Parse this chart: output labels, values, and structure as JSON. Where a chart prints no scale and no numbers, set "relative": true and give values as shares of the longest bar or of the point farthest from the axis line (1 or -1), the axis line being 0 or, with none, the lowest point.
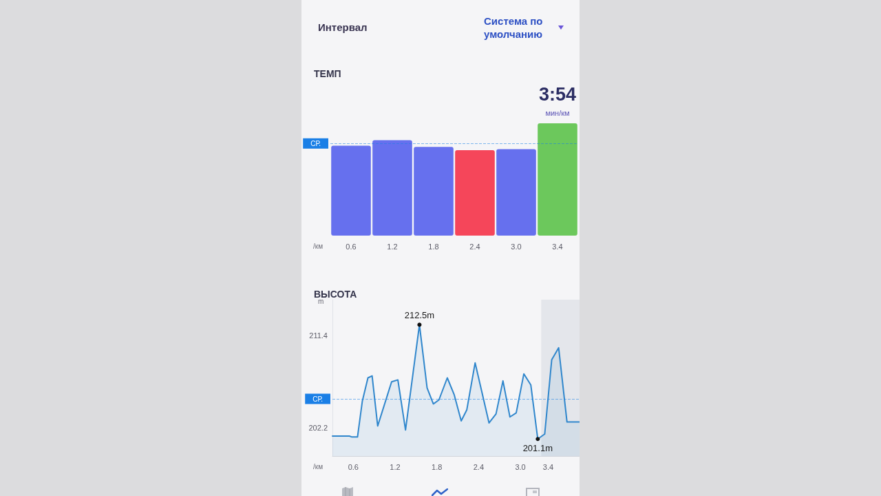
{
  "chart_data": [
    {
      "type": "other",
      "annotations": [
        "Интервал",
        "Система по умолчанию"
      ]
    },
    {
      "type": "bar",
      "title": "ТЕМП",
      "xlabel": "/км",
      "categories": [
        "0.6",
        "1.2",
        "1.8",
        "2.4",
        "3.0",
        "3.4"
      ],
      "values": [
        0.8,
        0.85,
        0.79,
        0.76,
        0.77,
        1
      ],
      "colors": [
        "#6670ee",
        "#6670ee",
        "#6670ee",
        "#f5465a",
        "#6670ee",
        "#6cc85c"
      ],
      "relative": true,
      "ref_lines": [
        {
          "axis": "y",
          "value": 0.82,
          "label": "СР.",
          "color": "#1a7fe6",
          "line_style": "dashed"
        }
      ],
      "annotations": [
        "3:54",
        "мин/км"
      ]
    },
    {
      "type": "area",
      "title": "ВЫСОТА",
      "xlabel": "/км",
      "ylabel": "m",
      "x": [
        0.3,
        0.54,
        0.58,
        0.66,
        0.73,
        0.81,
        0.87,
        0.95,
        1.15,
        1.24,
        1.35,
        1.55,
        1.66,
        1.75,
        1.83,
        1.95,
        2.05,
        2.15,
        2.23,
        2.35,
        2.55,
        2.65,
        2.75,
        2.85,
        2.94,
        3.05,
        3.15,
        3.25,
        3.35,
        3.45,
        3.55,
        3.67,
        3.85
      ],
      "values": [
        201.4,
        201.4,
        201.3,
        201.3,
        204.9,
        207.2,
        207.4,
        202.4,
        206.8,
        207.0,
        202.0,
        212.5,
        206.2,
        204.6,
        205.0,
        207.2,
        205.5,
        202.9,
        204.0,
        208.7,
        202.7,
        203.6,
        206.9,
        203.3,
        203.7,
        207.6,
        206.5,
        201.1,
        201.6,
        209.0,
        210.2,
        202.8,
        202.8
      ],
      "color": "#2f86cc",
      "xlim": [
        0.3,
        3.85
      ],
      "xticks": [
        0.6,
        1.2,
        1.8,
        2.4,
        {
          "value": 3,
          "label": "3.0"
        },
        3.4
      ],
      "ylim": [
        199.4,
        215
      ],
      "yticks": [
        202.2,
        211.4
      ],
      "ref_lines": [
        {
          "axis": "y",
          "value": 205.1,
          "label": "СР.",
          "color": "#1a7fe6",
          "line_style": "dashed"
        }
      ],
      "bands": [
        {
          "axis": "x",
          "from": 3.3,
          "to": 3.85,
          "color": "#e4e6eb"
        }
      ],
      "annotations": [
        {
          "text": "212.5m",
          "x": 1.55,
          "y": 212.5
        },
        {
          "text": "201.1m",
          "x": 3.25,
          "y": 201.1
        }
      ]
    }
  ]
}
